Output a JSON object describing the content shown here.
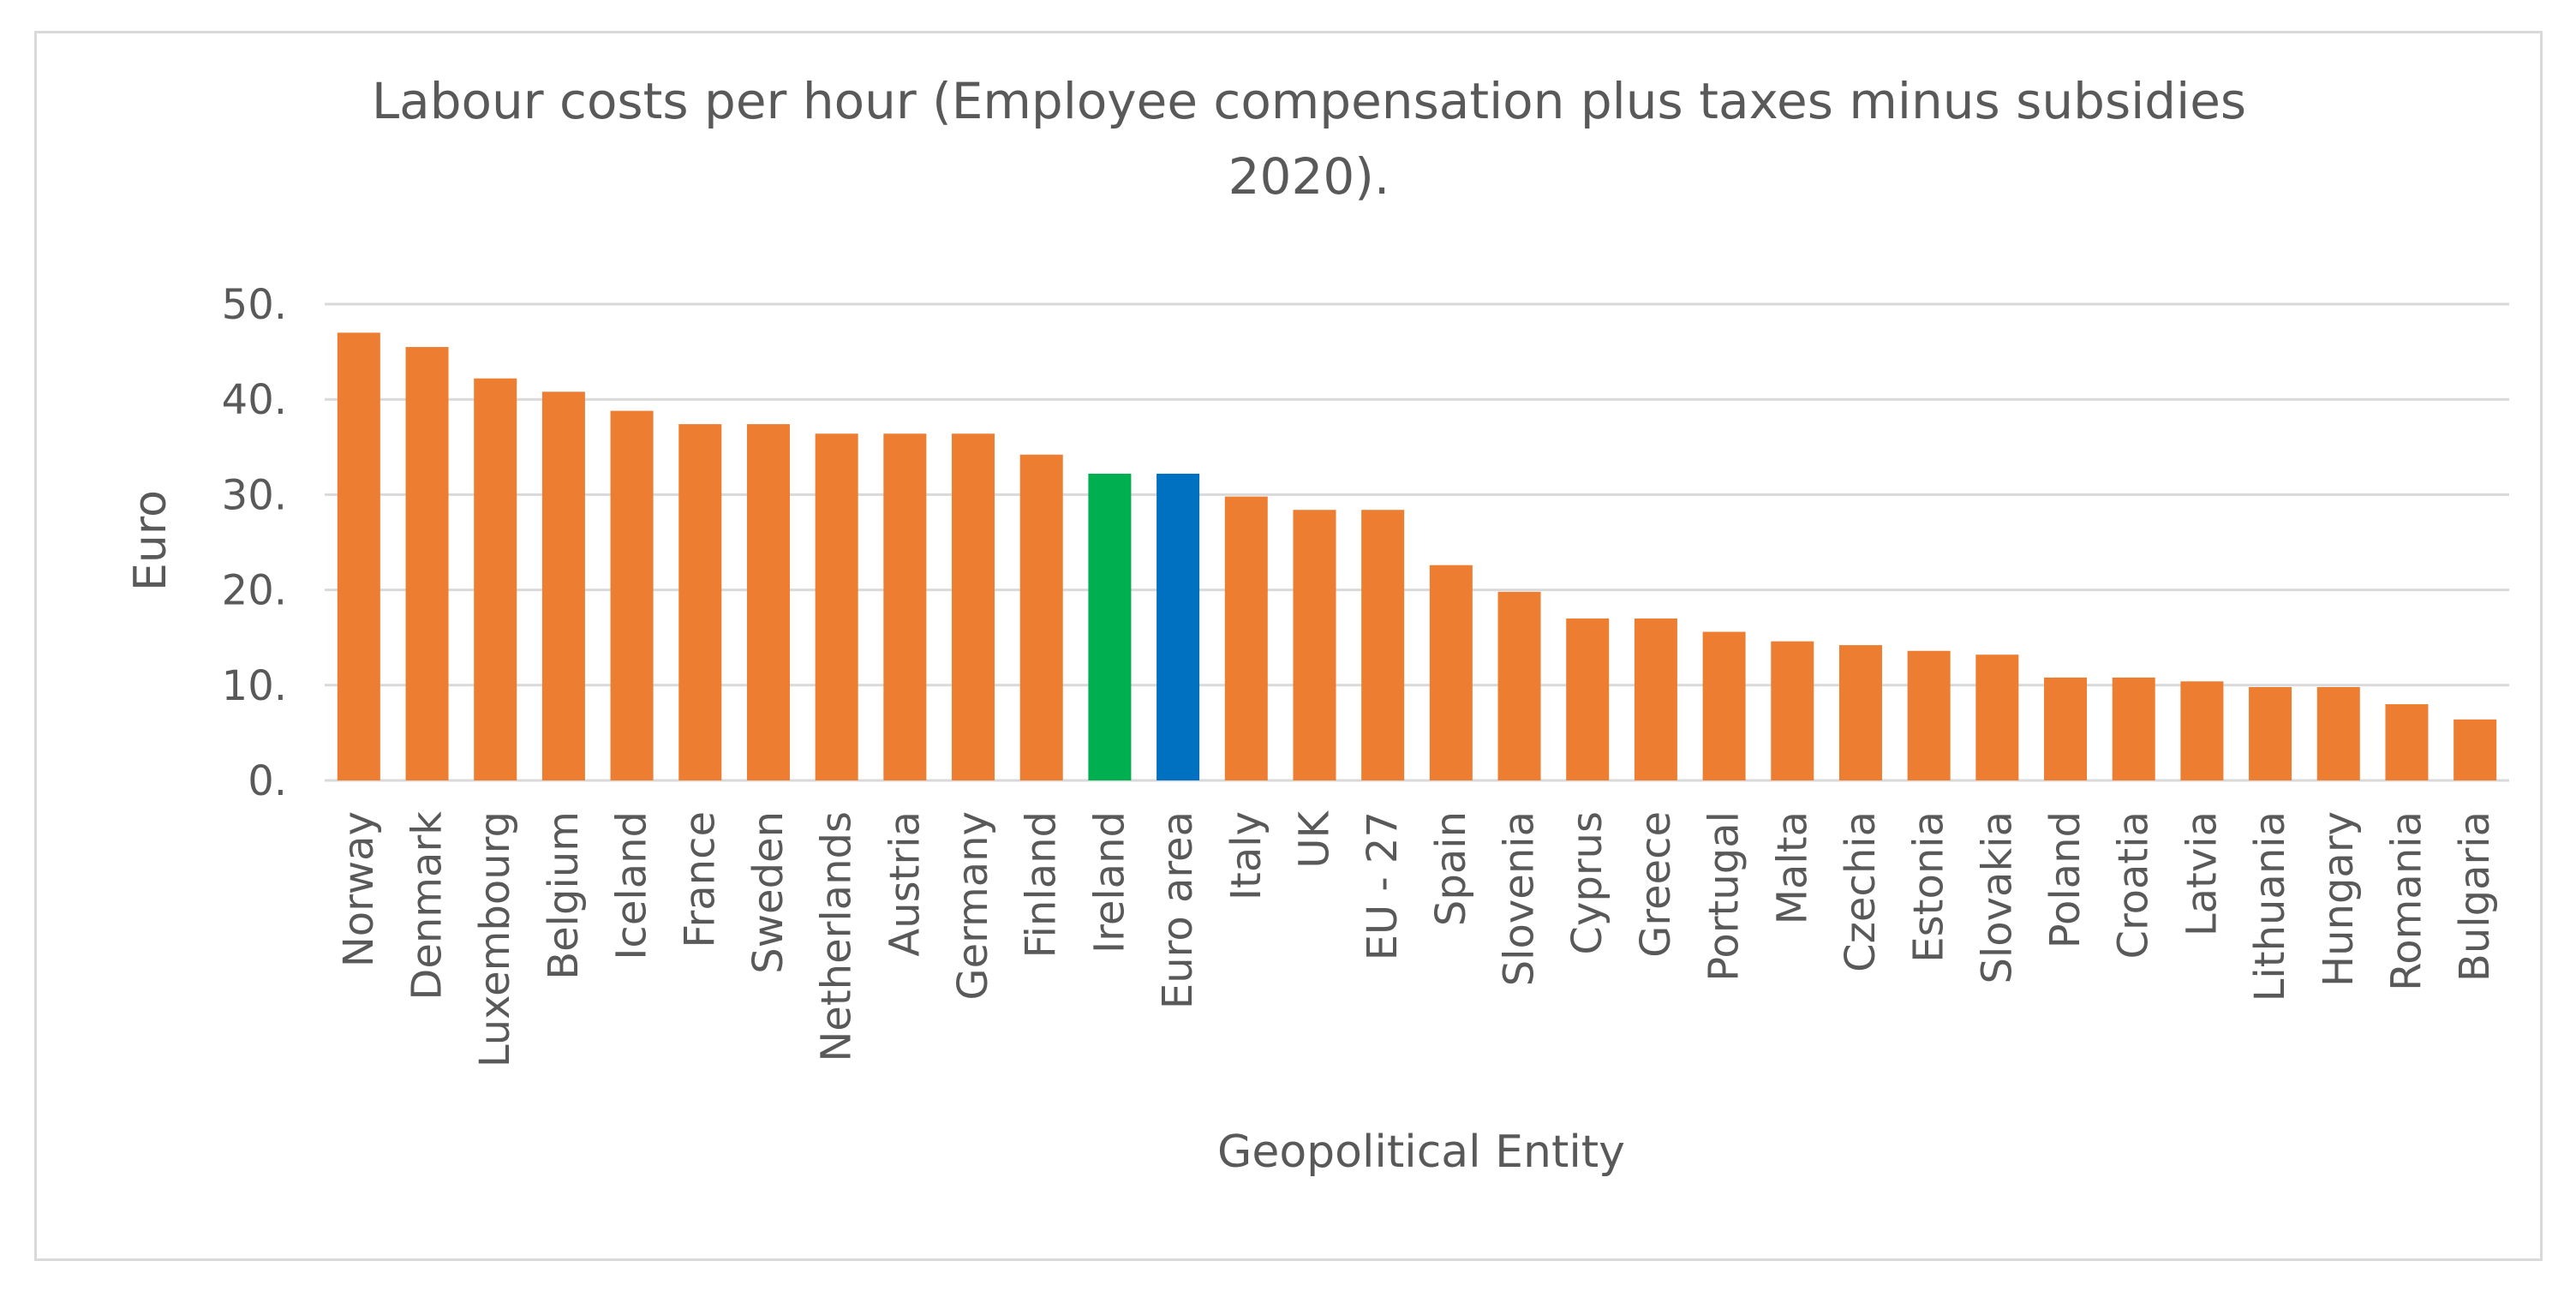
{
  "chart_data": {
    "type": "bar",
    "title_lines": [
      "Labour costs per hour (Employee compensation plus taxes minus subsidies",
      "2020)."
    ],
    "title": "Labour costs per hour (Employee compensation plus taxes minus subsidies 2020).",
    "xlabel": "Geopolitical Entity",
    "ylabel": "Euro",
    "ylim": [
      0,
      50
    ],
    "yticks": [
      0,
      10,
      20,
      30,
      40,
      50
    ],
    "ytick_labels": [
      "0.",
      "10.",
      "20.",
      "30.",
      "40.",
      "50."
    ],
    "grid": true,
    "categories": [
      "Norway",
      "Denmark",
      "Luxembourg",
      "Belgium",
      "Iceland",
      "France",
      "Sweden",
      "Netherlands",
      "Austria",
      "Germany",
      "Finland",
      "Ireland",
      "Euro area",
      "Italy",
      "UK",
      "EU - 27",
      "Spain",
      "Slovenia",
      "Cyprus",
      "Greece",
      "Portugal",
      "Malta",
      "Czechia",
      "Estonia",
      "Slovakia",
      "Poland",
      "Croatia",
      "Latvia",
      "Lithuania",
      "Hungary",
      "Romania",
      "Bulgaria"
    ],
    "values": [
      47.0,
      45.5,
      42.2,
      40.8,
      38.8,
      37.4,
      37.4,
      36.4,
      36.4,
      36.4,
      34.2,
      32.2,
      32.2,
      29.8,
      28.4,
      28.4,
      22.6,
      19.8,
      17.0,
      17.0,
      15.6,
      14.6,
      14.2,
      13.6,
      13.2,
      10.8,
      10.8,
      10.4,
      9.8,
      9.8,
      8.0,
      6.4
    ],
    "colors": {
      "default": "#ed7d31",
      "Ireland": "#00b050",
      "Euro area": "#0070c0",
      "grid": "#d9d9d9",
      "text": "#595959"
    }
  }
}
